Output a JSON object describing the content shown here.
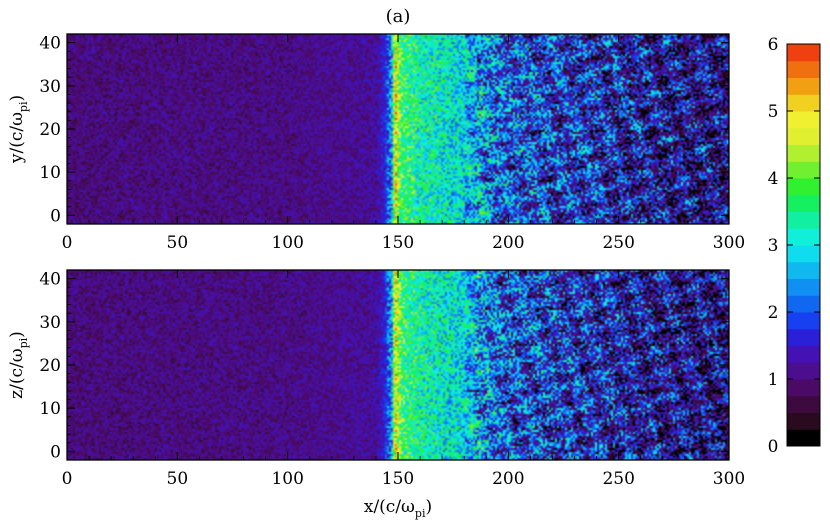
{
  "chart_data": {
    "type": "heatmap",
    "title": "(a)",
    "colorbar": {
      "vmin": 0,
      "vmax": 6,
      "ticks": [
        "0",
        "1",
        "2",
        "3",
        "4",
        "5",
        "6"
      ],
      "levels": [
        "#000000",
        "#2a0a1e",
        "#3c0a3e",
        "#4a0a66",
        "#4a0e8e",
        "#4412b4",
        "#2a20d8",
        "#1640f0",
        "#1068f0",
        "#1090f0",
        "#10b8f0",
        "#10dcf0",
        "#10f0d8",
        "#10f0a0",
        "#14f060",
        "#30f030",
        "#70f030",
        "#b0f030",
        "#e0f030",
        "#f0f030",
        "#f0d020",
        "#f0a010",
        "#f07010",
        "#f04010"
      ]
    },
    "panels": [
      {
        "name": "top",
        "ylabel_prefix": "y/(c/ω",
        "ylabel_sub": "pi",
        "ylabel_suffix": ")",
        "xlim": [
          0,
          300
        ],
        "ylim": [
          -2,
          42
        ],
        "xticks": [
          "0",
          "50",
          "100",
          "150",
          "200",
          "250",
          "300"
        ],
        "yticks": [
          "0",
          "10",
          "20",
          "30",
          "40"
        ],
        "field_profile": {
          "x": [
            0,
            100,
            140,
            144,
            146,
            147,
            148,
            149,
            150,
            152,
            160,
            170,
            180,
            190,
            200,
            220,
            240,
            260,
            280,
            300
          ],
          "mean": [
            1.0,
            1.05,
            1.2,
            1.6,
            2.3,
            2.0,
            4.2,
            5.0,
            4.3,
            3.7,
            3.3,
            3.1,
            2.9,
            2.4,
            2.0,
            1.8,
            1.6,
            1.35,
            1.2,
            1.1
          ]
        }
      },
      {
        "name": "bottom",
        "ylabel_prefix": "z/(c/ω",
        "ylabel_sub": "pi",
        "ylabel_suffix": ")",
        "xlabel_prefix": "x/(c/ω",
        "xlabel_sub": "pi",
        "xlabel_suffix": ")",
        "xlim": [
          0,
          300
        ],
        "ylim": [
          -2,
          42
        ],
        "xticks": [
          "0",
          "50",
          "100",
          "150",
          "200",
          "250",
          "300"
        ],
        "yticks": [
          "0",
          "10",
          "20",
          "30",
          "40"
        ],
        "field_profile": {
          "x": [
            0,
            100,
            140,
            144,
            146,
            147,
            148,
            149,
            150,
            152,
            160,
            170,
            180,
            190,
            200,
            220,
            240,
            260,
            280,
            300
          ],
          "mean": [
            1.0,
            1.05,
            1.2,
            1.6,
            2.3,
            2.0,
            4.2,
            5.0,
            4.3,
            3.7,
            3.3,
            3.1,
            2.9,
            2.4,
            2.0,
            1.8,
            1.6,
            1.35,
            1.2,
            1.1
          ]
        }
      }
    ]
  }
}
